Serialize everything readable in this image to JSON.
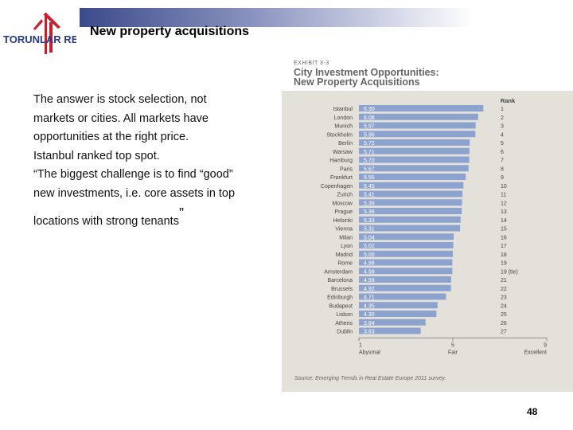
{
  "slide": {
    "title": "New property acquisitions",
    "page_number": "48",
    "logo_text": "TORUNLAR REIC",
    "body": {
      "line1": "The answer is stock selection, not",
      "line2": "markets or cities. All markets have",
      "line3": "opportunities at the right price.",
      "line4": "Istanbul ranked top spot.",
      "line5": "“The biggest challenge is to find “good”",
      "line6": "new investments, i.e. core assets in top",
      "line7": "locations with strong tenants",
      "closing_quote": "”"
    }
  },
  "chart_data": {
    "type": "bar",
    "exhibit_label": "EXHIBIT 3-3",
    "title": "City Investment Opportunities:",
    "subtitle": "New Property Acquisitions",
    "categories": [
      "Istanbul",
      "London",
      "Munich",
      "Stockholm",
      "Berlin",
      "Warsaw",
      "Hamburg",
      "Paris",
      "Frankfurt",
      "Copenhagen",
      "Zurich",
      "Moscow",
      "Prague",
      "Helsinki",
      "Vienna",
      "Milan",
      "Lyon",
      "Madrid",
      "Rome",
      "Amsterdam",
      "Barcelona",
      "Brussels",
      "Edinburgh",
      "Budapest",
      "Lisbon",
      "Athens",
      "Dublin"
    ],
    "values": [
      6.3,
      6.08,
      5.97,
      5.96,
      5.72,
      5.71,
      5.7,
      5.67,
      5.55,
      5.45,
      5.41,
      5.39,
      5.38,
      5.33,
      5.31,
      5.04,
      5.02,
      5.0,
      4.98,
      4.98,
      4.93,
      4.92,
      4.71,
      4.35,
      4.3,
      3.84,
      3.63
    ],
    "value_labels": [
      "6.30",
      "6.08",
      "5.97",
      "5.96",
      "5.72",
      "5.71",
      "5.70",
      "5.67",
      "5.55",
      "5.45",
      "5.41",
      "5.39",
      "5.38",
      "5.33",
      "5.31",
      "5.04",
      "5.02",
      "5.00",
      "4.98",
      "4.98",
      "4.93",
      "4.92",
      "4.71",
      "4.35",
      "4.30",
      "3.84",
      "3.63"
    ],
    "rank_header": "Rank",
    "ranks": [
      "1",
      "2",
      "3",
      "4",
      "5",
      "6",
      "7",
      "8",
      "9",
      "10",
      "11",
      "12",
      "13",
      "14",
      "15",
      "16",
      "17",
      "18",
      "19",
      "19 (tie)",
      "21",
      "22",
      "23",
      "24",
      "25",
      "26",
      "27"
    ],
    "xlim": [
      1,
      9
    ],
    "x_ticks": [
      "1",
      "5",
      "9"
    ],
    "x_tick_labels": [
      "Abysmal",
      "Fair",
      "Excellent"
    ],
    "source": "Source: Emerging Trends in Real Estate Europe 2011 survey.",
    "colors": {
      "bar": "#8da3cf",
      "panel": "#e4e1da",
      "text": "#444444"
    }
  }
}
